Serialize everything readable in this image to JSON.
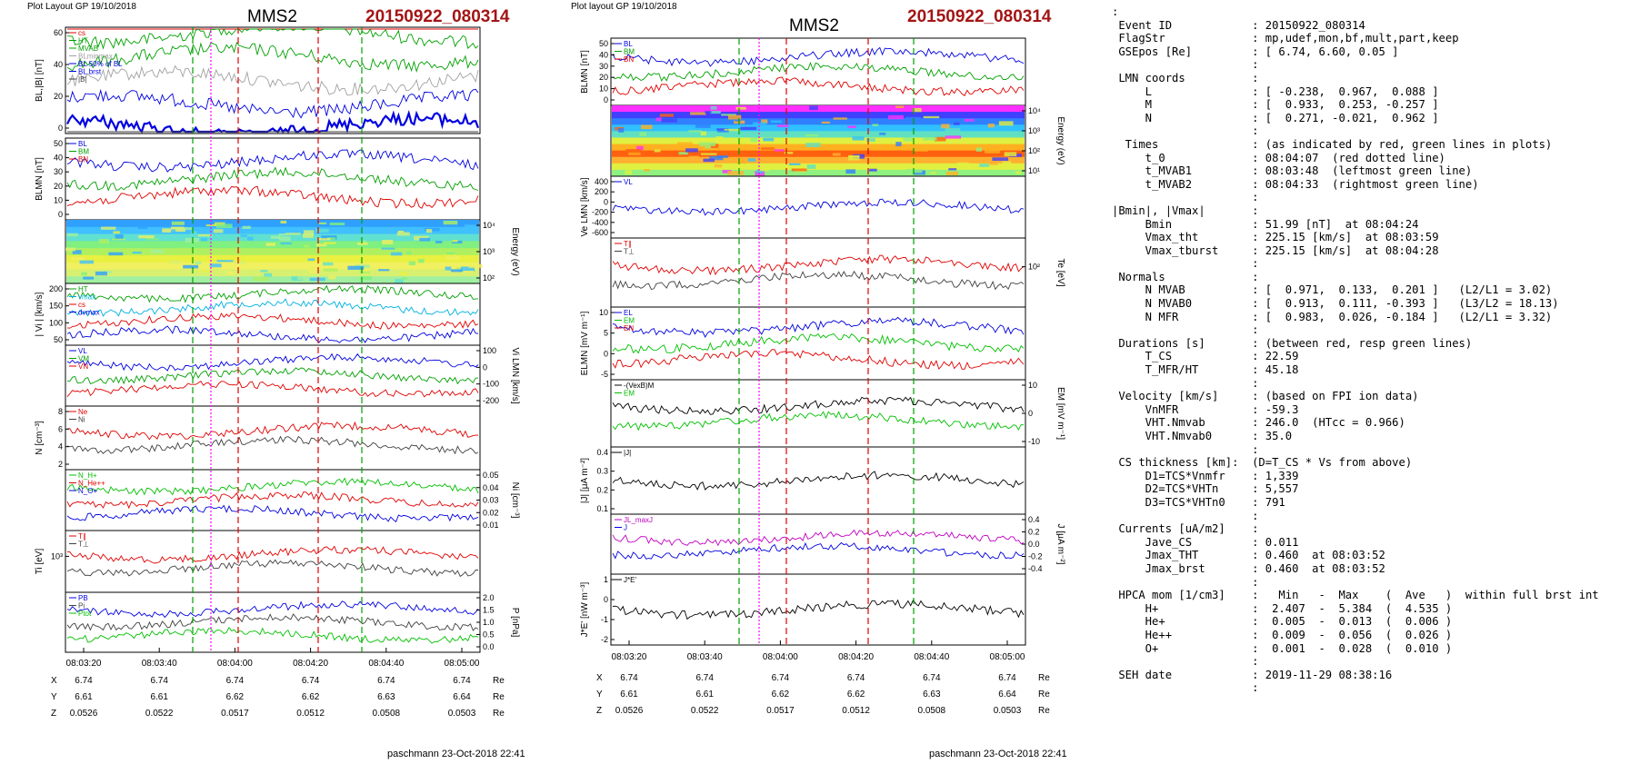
{
  "left_panel": {
    "header_left": "Plot Layout GP 19/10/2018",
    "spacecraft": "MMS2",
    "event": "20150922_080314",
    "footer": "paschmann 23-Oct-2018 22:41",
    "time_ticks": [
      "08:03:20",
      "08:03:40",
      "08:04:00",
      "08:04:20",
      "08:04:40",
      "08:05:00"
    ],
    "pos_rows": [
      {
        "label": "X",
        "values": [
          "6.74",
          "6.74",
          "6.74",
          "6.74",
          "6.74",
          "6.74"
        ],
        "unit": "Re"
      },
      {
        "label": "Y",
        "values": [
          "6.61",
          "6.61",
          "6.62",
          "6.62",
          "6.63",
          "6.64"
        ],
        "unit": "Re"
      },
      {
        "label": "Z",
        "values": [
          "0.0526",
          "0.0522",
          "0.0517",
          "0.0512",
          "0.0508",
          "0.0503"
        ],
        "unit": "Re"
      }
    ],
    "panels": [
      {
        "id": "bl",
        "ylabel": "BL,|B| [nT]",
        "ticks_left": [
          "60",
          "40",
          "20",
          "0"
        ],
        "ticks_right": [],
        "legend": [
          {
            "text": "cs",
            "color": "#e00000"
          },
          {
            "text": "HT",
            "color": "#00a000"
          },
          {
            "text": "MVAB",
            "color": "#00a000"
          },
          {
            "text": "BLminmax",
            "color": "#a0a0a0"
          },
          {
            "text": "BL 50% of BL",
            "color": "#0000e0"
          },
          {
            "text": "BL brst",
            "color": "#0000e0"
          },
          {
            "text": "|B|",
            "color": "#404040"
          }
        ]
      },
      {
        "id": "blmn",
        "ylabel": "BLMN [nT]",
        "ticks_left": [
          "50",
          "40",
          "30",
          "20",
          "10",
          "0"
        ],
        "ticks_right": [],
        "legend": [
          {
            "text": "BL",
            "color": "#0000e0"
          },
          {
            "text": "BM",
            "color": "#00a000"
          },
          {
            "text": "BN",
            "color": "#e00000"
          }
        ]
      },
      {
        "id": "spec",
        "ylabel": "",
        "ticks_left": [],
        "ticks_right": [
          "10⁴",
          "10³",
          "10²"
        ],
        "right_label": "Energy (eV)",
        "legend": []
      },
      {
        "id": "vi",
        "ylabel": "| Vi | [km/s]",
        "ticks_left": [
          "200",
          "150",
          "100",
          "50"
        ],
        "ticks_right": [],
        "legend": [
          {
            "text": "HT",
            "color": "#00a000"
          },
          {
            "text": "vmax",
            "color": "#00b0e0"
          },
          {
            "text": "cs",
            "color": "#e00000"
          },
          {
            "text": "dvmax",
            "color": "#0000e0"
          }
        ]
      },
      {
        "id": "vilmn",
        "ylabel": "",
        "ticks_left": [],
        "ticks_right": [
          "100",
          "0",
          "-100",
          "-200"
        ],
        "right_label": "Vi LMN [km/s]",
        "legend": [
          {
            "text": "VL",
            "color": "#0000e0"
          },
          {
            "text": "VM",
            "color": "#00a000"
          },
          {
            "text": "VN",
            "color": "#e00000"
          }
        ]
      },
      {
        "id": "n",
        "ylabel": "N [cm⁻³]",
        "ticks_left": [
          "8",
          "6",
          "4",
          "2"
        ],
        "ticks_right": [],
        "legend": [
          {
            "text": "Ne",
            "color": "#e00000"
          },
          {
            "text": "Ni",
            "color": "#404040"
          }
        ]
      },
      {
        "id": "ni",
        "ylabel": "",
        "ticks_left": [],
        "ticks_right": [
          "0.05",
          "0.04",
          "0.03",
          "0.02",
          "0.01"
        ],
        "right_label": "Ni [cm⁻³]",
        "legend": [
          {
            "text": "N_H+",
            "color": "#00c000"
          },
          {
            "text": "N_He++",
            "color": "#e00000"
          },
          {
            "text": "N_O+",
            "color": "#0000e0"
          }
        ]
      },
      {
        "id": "ti",
        "ylabel": "Ti [eV]",
        "ticks_left": [
          "10³"
        ],
        "ticks_right": [],
        "legend": [
          {
            "text": "T∥",
            "color": "#e00000"
          },
          {
            "text": "T⊥",
            "color": "#404040"
          }
        ]
      },
      {
        "id": "p",
        "ylabel": "",
        "ticks_left": [],
        "ticks_right": [
          "2.0",
          "1.5",
          "1.0",
          "0.5",
          "0.0"
        ],
        "right_label": "P [nPa]",
        "legend": [
          {
            "text": "PB",
            "color": "#0000e0"
          },
          {
            "text": "Pi",
            "color": "#404040"
          },
          {
            "text": "Ptot",
            "color": "#00c000"
          }
        ]
      }
    ]
  },
  "mid_panel": {
    "header_left": "Plot layout GP 19/10/2018",
    "spacecraft": "MMS2",
    "event": "20150922_080314",
    "footer": "paschmann 23-Oct-2018 22:41",
    "time_ticks": [
      "08:03:20",
      "08:03:40",
      "08:04:00",
      "08:04:20",
      "08:04:40",
      "08:05:00"
    ],
    "pos_rows": [
      {
        "label": "X",
        "values": [
          "6.74",
          "6.74",
          "6.74",
          "6.74",
          "6.74",
          "6.74"
        ],
        "unit": "Re"
      },
      {
        "label": "Y",
        "values": [
          "6.61",
          "6.61",
          "6.62",
          "6.62",
          "6.63",
          "6.64"
        ],
        "unit": "Re"
      },
      {
        "label": "Z",
        "values": [
          "0.0526",
          "0.0522",
          "0.0517",
          "0.0512",
          "0.0508",
          "0.0503"
        ],
        "unit": "Re"
      }
    ],
    "panels": [
      {
        "id": "blmn",
        "ylabel": "BLMN [nT]",
        "ticks_left": [
          "50",
          "40",
          "30",
          "20",
          "10",
          "0"
        ],
        "ticks_right": [],
        "legend": [
          {
            "text": "BL",
            "color": "#0000e0"
          },
          {
            "text": "BM",
            "color": "#00a000"
          },
          {
            "text": "BN",
            "color": "#e00000"
          }
        ]
      },
      {
        "id": "spec",
        "ylabel": "",
        "ticks_left": [],
        "ticks_right": [
          "10⁴",
          "10³",
          "10²",
          "10¹"
        ],
        "right_label": "Energy (eV)",
        "legend": []
      },
      {
        "id": "ve",
        "ylabel": "Ve LMN [km/s]",
        "ticks_left": [
          "400",
          "200",
          "0",
          "-200",
          "-400",
          "-600"
        ],
        "ticks_right": [],
        "legend": [
          {
            "text": "VL",
            "color": "#0000e0"
          }
        ]
      },
      {
        "id": "te",
        "ylabel": "",
        "ticks_left": [],
        "ticks_right": [
          "10²"
        ],
        "right_label": "Te [eV]",
        "legend": [
          {
            "text": "T∥",
            "color": "#e00000"
          },
          {
            "text": "T⊥",
            "color": "#404040"
          }
        ]
      },
      {
        "id": "elmn",
        "ylabel": "ELMN [mV m⁻¹]",
        "ticks_left": [
          "10",
          "5",
          "0",
          "-5"
        ],
        "ticks_right": [],
        "legend": [
          {
            "text": "EL",
            "color": "#0000e0"
          },
          {
            "text": "EM",
            "color": "#00c000"
          },
          {
            "text": "EN",
            "color": "#e00000"
          }
        ]
      },
      {
        "id": "em",
        "ylabel": "",
        "ticks_left": [],
        "ticks_right": [
          "10",
          "0",
          "-10"
        ],
        "right_label": "EM [mV m⁻¹]",
        "legend": [
          {
            "text": "-(VexB)M",
            "color": "#000000"
          },
          {
            "text": "EM",
            "color": "#00c000"
          }
        ]
      },
      {
        "id": "j",
        "ylabel": "|J| [μA m⁻²]",
        "ticks_left": [
          "0.4",
          "0.3",
          "0.2",
          "0.1"
        ],
        "ticks_right": [],
        "legend": [
          {
            "text": "|J|",
            "color": "#000000"
          }
        ]
      },
      {
        "id": "jlmn",
        "ylabel": "",
        "ticks_left": [],
        "ticks_right": [
          "0.4",
          "0.2",
          "0.0",
          "-0.2",
          "-0.4"
        ],
        "right_label": "J [μA m⁻²]",
        "legend": [
          {
            "text": "JL_maxJ",
            "color": "#c000c0"
          },
          {
            "text": "J",
            "color": "#0000e0"
          }
        ]
      },
      {
        "id": "je",
        "ylabel": "J*E' [nW m⁻³]",
        "ticks_left": [
          "1",
          "0",
          "-1",
          "-2"
        ],
        "ticks_right": [],
        "legend": [
          {
            "text": "J*E'",
            "color": "#000000"
          }
        ]
      }
    ]
  },
  "info_lines": [
    ":",
    " Event ID            : 20150922_080314",
    " FlagStr             : mp,udef,mon,bf,mult,part,keep",
    " GSEpos [Re]         : [ 6.74, 6.60, 0.05 ]",
    "                     :",
    " LMN coords          :",
    "     L               : [ -0.238,  0.967,  0.088 ]",
    "     M               : [  0.933,  0.253, -0.257 ]",
    "     N               : [  0.271, -0.021,  0.962 ]",
    "                     :",
    "  Times              : (as indicated by red, green lines in plots)",
    "     t_0             : 08:04:07  (red dotted line)",
    "     t_MVAB1         : 08:03:48  (leftmost green line)",
    "     t_MVAB2         : 08:04:33  (rightmost green line)",
    "                     :",
    "|Bmin|, |Vmax|       :",
    "     Bmin            : 51.99 [nT]  at 08:04:24",
    "     Vmax_tht        : 225.15 [km/s]  at 08:03:59",
    "     Vmax_tburst     : 225.15 [km/s]  at 08:04:28",
    "                     :",
    " Normals             :",
    "     N MVAB          : [  0.971,  0.133,  0.201 ]   (L2/L1 = 3.02)",
    "     N MVAB0         : [  0.913,  0.111, -0.393 ]   (L3/L2 = 18.13)",
    "     N MFR           : [  0.983,  0.026, -0.184 ]   (L2/L1 = 3.32)",
    "                     :",
    " Durations [s]       : (between red, resp green lines)",
    "     T_CS            : 22.59",
    "     T_MFR/HT        : 45.18",
    "                     :",
    " Velocity [km/s]     : (based on FPI ion data)",
    "     VnMFR           : -59.3",
    "     VHT.Nmvab       : 246.0  (HTcc = 0.966)",
    "     VHT.Nmvab0      : 35.0",
    "                     :",
    " CS thickness [km]:  (D=T_CS * Vs from above)",
    "     D1=TCS*Vnmfr    : 1,339",
    "     D2=TCS*VHTn     : 5,557",
    "     D3=TCS*VHTn0    : 791",
    "                     :",
    " Currents [uA/m2]    :",
    "     Jave_CS         : 0.011",
    "     Jmax_THT        : 0.460  at 08:03:52",
    "     Jmax_brst       : 0.460  at 08:03:52",
    "                     :",
    " HPCA mom [1/cm3]    :   Min   -  Max    (  Ave   )  within full brst int",
    "     H+              :  2.407  -  5.384  (  4.535 )",
    "     He+             :  0.005  -  0.013  (  0.006 )",
    "     He++            :  0.009  -  0.056  (  0.026 )",
    "     O+              :  0.001  -  0.028  (  0.010 )",
    "                     :",
    " SEH date            : 2019-11-29 08:38:16",
    "                     :"
  ],
  "chart_data": [
    {
      "type": "line",
      "title": "MMS2 20150922_080314",
      "xlabel": "",
      "x_ticks": [
        "08:03:20",
        "08:03:40",
        "08:04:00",
        "08:04:20",
        "08:04:40",
        "08:05:00"
      ],
      "series": [
        {
          "name": "|B|",
          "panel": "BL,|B| [nT]",
          "values": [
            54,
            56,
            57,
            55,
            51,
            52,
            54,
            55
          ]
        },
        {
          "name": "BL brst",
          "panel": "BL,|B| [nT]",
          "values": [
            18,
            19,
            27,
            33,
            20,
            13,
            12,
            12
          ]
        },
        {
          "name": "Ni H+ (He++ scaled)",
          "panel": "Ni [cm-3]",
          "values": [
            0.025,
            0.036,
            0.034,
            0.028,
            0.022,
            0.012,
            0.048,
            0.018,
            0.042
          ]
        }
      ]
    },
    {
      "type": "line",
      "title": "MMS2 20150922_080314",
      "x_ticks": [
        "08:03:20",
        "08:03:40",
        "08:04:00",
        "08:04:20",
        "08:04:40",
        "08:05:00"
      ],
      "series": [
        {
          "name": "BL",
          "panel": "BLMN [nT]",
          "values": [
            50,
            49,
            51,
            53,
            50,
            48,
            49,
            50
          ]
        },
        {
          "name": "|J|",
          "panel": "|J| [μA m-2]",
          "values": [
            0.08,
            0.1,
            0.2,
            0.46,
            0.12,
            0.1,
            0.08,
            0.07
          ]
        }
      ]
    }
  ]
}
